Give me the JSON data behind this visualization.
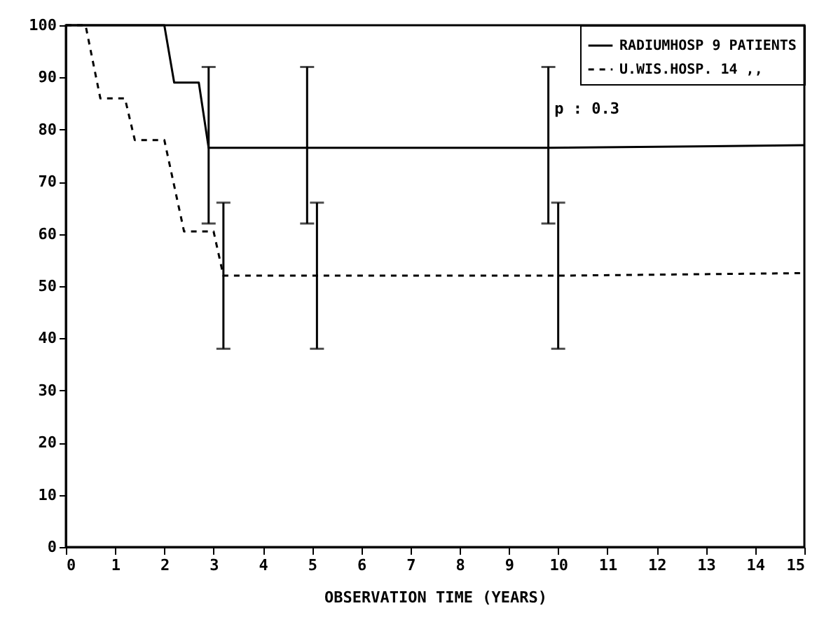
{
  "chart_data": {
    "type": "line",
    "xlabel": "OBSERVATION TIME (YEARS)",
    "xlim": [
      0,
      15
    ],
    "xticks": [
      0,
      1,
      2,
      3,
      4,
      5,
      6,
      7,
      8,
      9,
      10,
      11,
      12,
      13,
      14,
      15
    ],
    "ylim": [
      0,
      100
    ],
    "yticks": [
      0,
      10,
      20,
      30,
      40,
      50,
      60,
      70,
      80,
      90,
      100
    ],
    "grid": false,
    "legend": "top right",
    "marker": "none",
    "annotations": [
      "p : 0.3"
    ],
    "series": [
      {
        "name": "RADIUMHOSP 9 PATIENTS",
        "color": "#000000",
        "line_style": "solid",
        "x": [
          0,
          2,
          2.2,
          2.7,
          2.9,
          4.9,
          9.8,
          15
        ],
        "values": [
          100,
          100,
          89,
          89,
          76.5,
          76.5,
          76.5,
          77
        ],
        "errors": [
          null,
          null,
          null,
          null,
          [
            62,
            92
          ],
          [
            62,
            92
          ],
          [
            62,
            92
          ],
          null
        ]
      },
      {
        "name": "U.WIS.HOSP. 14 ,,",
        "color": "#000000",
        "line_style": "dashed",
        "x": [
          0,
          0.4,
          0.7,
          1.2,
          1.4,
          2,
          2.4,
          3,
          3.2,
          5.1,
          10,
          15
        ],
        "values": [
          100,
          100,
          86,
          86,
          78,
          78,
          60.5,
          60.5,
          52,
          52,
          52,
          52.5
        ],
        "errors": [
          null,
          null,
          null,
          null,
          null,
          null,
          null,
          null,
          [
            38,
            66
          ],
          [
            38,
            66
          ],
          [
            38,
            66
          ],
          null
        ]
      }
    ]
  }
}
